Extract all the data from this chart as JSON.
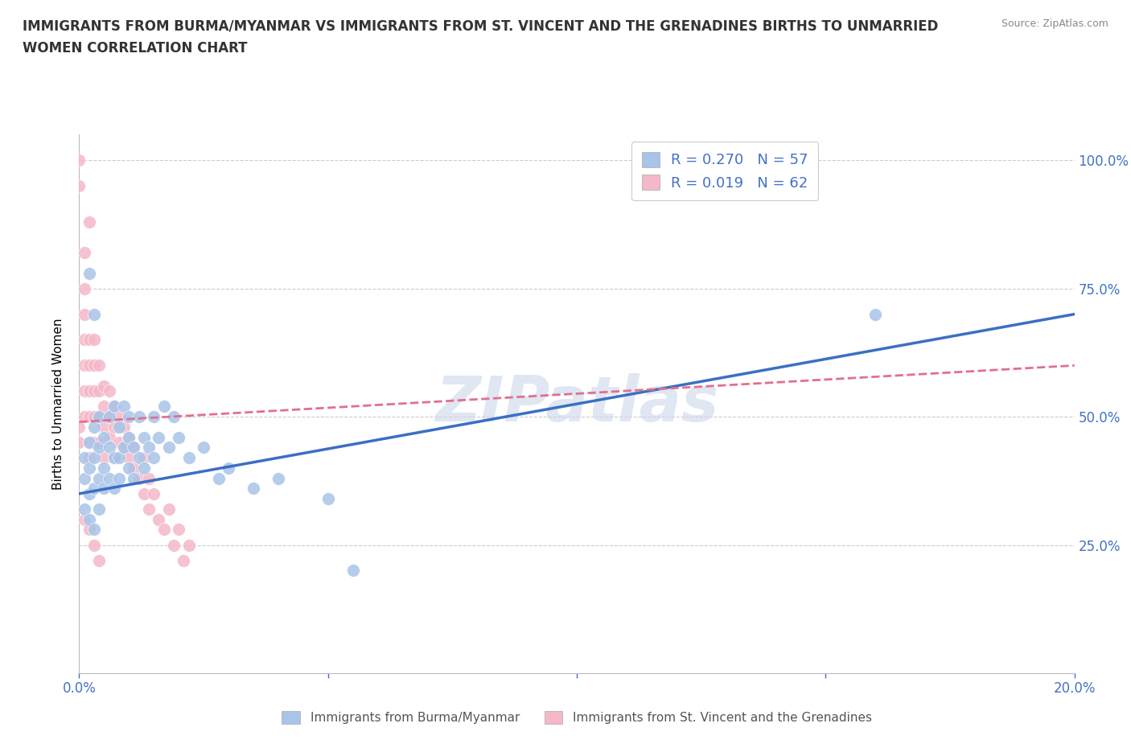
{
  "title_line1": "IMMIGRANTS FROM BURMA/MYANMAR VS IMMIGRANTS FROM ST. VINCENT AND THE GRENADINES BIRTHS TO UNMARRIED",
  "title_line2": "WOMEN CORRELATION CHART",
  "source": "Source: ZipAtlas.com",
  "xlabel": "",
  "ylabel": "Births to Unmarried Women",
  "x_min": 0.0,
  "x_max": 0.2,
  "y_min": 0.0,
  "y_max": 1.05,
  "y_ticks": [
    0.0,
    0.25,
    0.5,
    0.75,
    1.0
  ],
  "y_tick_labels": [
    "",
    "25.0%",
    "50.0%",
    "75.0%",
    "100.0%"
  ],
  "blue_R": 0.27,
  "blue_N": 57,
  "pink_R": 0.019,
  "pink_N": 62,
  "blue_color": "#a8c4e8",
  "pink_color": "#f5b8c8",
  "blue_line_color": "#3b6fc4",
  "pink_line_color": "#e07090",
  "watermark": "ZIPatlas",
  "legend_blue_label": "Immigrants from Burma/Myanmar",
  "legend_pink_label": "Immigrants from St. Vincent and the Grenadines",
  "blue_scatter_x": [
    0.001,
    0.001,
    0.001,
    0.002,
    0.002,
    0.002,
    0.002,
    0.003,
    0.003,
    0.003,
    0.003,
    0.004,
    0.004,
    0.004,
    0.004,
    0.005,
    0.005,
    0.005,
    0.006,
    0.006,
    0.006,
    0.007,
    0.007,
    0.007,
    0.008,
    0.008,
    0.008,
    0.009,
    0.009,
    0.01,
    0.01,
    0.01,
    0.011,
    0.011,
    0.012,
    0.012,
    0.013,
    0.013,
    0.014,
    0.015,
    0.015,
    0.016,
    0.017,
    0.018,
    0.019,
    0.02,
    0.022,
    0.025,
    0.028,
    0.03,
    0.035,
    0.04,
    0.05,
    0.055,
    0.16,
    0.002,
    0.003
  ],
  "blue_scatter_y": [
    0.38,
    0.32,
    0.42,
    0.35,
    0.4,
    0.3,
    0.45,
    0.36,
    0.42,
    0.28,
    0.48,
    0.38,
    0.44,
    0.32,
    0.5,
    0.4,
    0.46,
    0.36,
    0.44,
    0.5,
    0.38,
    0.52,
    0.42,
    0.36,
    0.48,
    0.42,
    0.38,
    0.52,
    0.44,
    0.46,
    0.4,
    0.5,
    0.44,
    0.38,
    0.5,
    0.42,
    0.46,
    0.4,
    0.44,
    0.5,
    0.42,
    0.46,
    0.52,
    0.44,
    0.5,
    0.46,
    0.42,
    0.44,
    0.38,
    0.4,
    0.36,
    0.38,
    0.34,
    0.2,
    0.7,
    0.78,
    0.7
  ],
  "pink_scatter_x": [
    0.0,
    0.0,
    0.001,
    0.001,
    0.001,
    0.001,
    0.001,
    0.001,
    0.002,
    0.002,
    0.002,
    0.002,
    0.002,
    0.002,
    0.003,
    0.003,
    0.003,
    0.003,
    0.003,
    0.004,
    0.004,
    0.004,
    0.004,
    0.005,
    0.005,
    0.005,
    0.005,
    0.006,
    0.006,
    0.006,
    0.007,
    0.007,
    0.007,
    0.008,
    0.008,
    0.009,
    0.009,
    0.01,
    0.01,
    0.011,
    0.011,
    0.012,
    0.013,
    0.013,
    0.014,
    0.014,
    0.015,
    0.016,
    0.017,
    0.018,
    0.019,
    0.02,
    0.021,
    0.022,
    0.001,
    0.002,
    0.003,
    0.004,
    0.0,
    0.0,
    0.001,
    0.002
  ],
  "pink_scatter_y": [
    0.48,
    0.45,
    0.6,
    0.55,
    0.5,
    0.65,
    0.7,
    0.75,
    0.5,
    0.55,
    0.6,
    0.45,
    0.65,
    0.42,
    0.55,
    0.5,
    0.6,
    0.45,
    0.65,
    0.5,
    0.55,
    0.45,
    0.6,
    0.48,
    0.52,
    0.42,
    0.56,
    0.46,
    0.5,
    0.55,
    0.48,
    0.42,
    0.52,
    0.45,
    0.5,
    0.44,
    0.48,
    0.42,
    0.46,
    0.4,
    0.44,
    0.38,
    0.35,
    0.42,
    0.38,
    0.32,
    0.35,
    0.3,
    0.28,
    0.32,
    0.25,
    0.28,
    0.22,
    0.25,
    0.3,
    0.28,
    0.25,
    0.22,
    0.95,
    1.0,
    0.82,
    0.88
  ]
}
